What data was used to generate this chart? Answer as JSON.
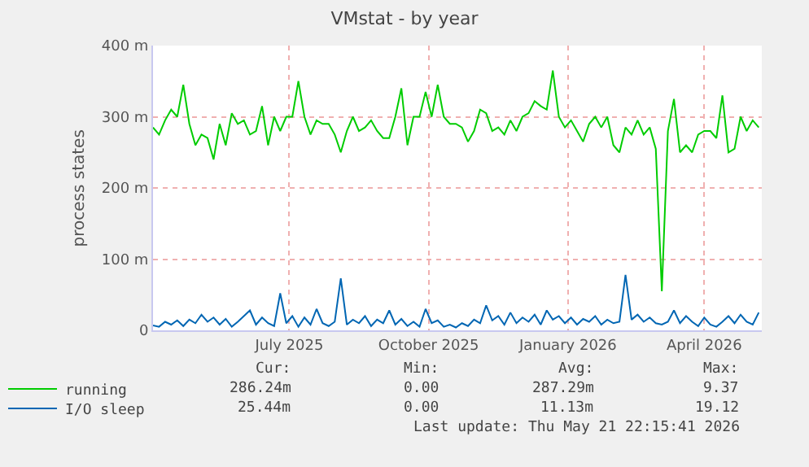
{
  "chart_data": {
    "type": "line",
    "title": "VMstat - by year",
    "ylabel": "process states",
    "x": [
      "2025-04-02",
      "2025-04-06",
      "2025-04-10",
      "2025-04-14",
      "2025-04-18",
      "2025-04-22",
      "2025-04-26",
      "2025-04-30",
      "2025-05-04",
      "2025-05-08",
      "2025-05-12",
      "2025-05-16",
      "2025-05-20",
      "2025-05-24",
      "2025-05-28",
      "2025-06-01",
      "2025-06-05",
      "2025-06-09",
      "2025-06-13",
      "2025-06-17",
      "2025-06-21",
      "2025-06-25",
      "2025-06-29",
      "2025-07-03",
      "2025-07-07",
      "2025-07-11",
      "2025-07-15",
      "2025-07-19",
      "2025-07-23",
      "2025-07-27",
      "2025-07-31",
      "2025-08-04",
      "2025-08-08",
      "2025-08-12",
      "2025-08-16",
      "2025-08-20",
      "2025-08-24",
      "2025-08-28",
      "2025-09-01",
      "2025-09-05",
      "2025-09-09",
      "2025-09-13",
      "2025-09-17",
      "2025-09-21",
      "2025-09-25",
      "2025-09-29",
      "2025-10-03",
      "2025-10-07",
      "2025-10-11",
      "2025-10-15",
      "2025-10-19",
      "2025-10-23",
      "2025-10-27",
      "2025-10-31",
      "2025-11-04",
      "2025-11-08",
      "2025-11-12",
      "2025-11-16",
      "2025-11-20",
      "2025-11-24",
      "2025-11-28",
      "2025-12-02",
      "2025-12-06",
      "2025-12-10",
      "2025-12-14",
      "2025-12-18",
      "2025-12-22",
      "2025-12-26",
      "2025-12-30",
      "2026-01-03",
      "2026-01-07",
      "2026-01-11",
      "2026-01-15",
      "2026-01-19",
      "2026-01-23",
      "2026-01-27",
      "2026-01-31",
      "2026-02-04",
      "2026-02-08",
      "2026-02-12",
      "2026-02-16",
      "2026-02-20",
      "2026-02-24",
      "2026-02-28",
      "2026-03-04",
      "2026-03-08",
      "2026-03-12",
      "2026-03-16",
      "2026-03-20",
      "2026-03-24",
      "2026-03-28",
      "2026-04-01",
      "2026-04-05",
      "2026-04-09",
      "2026-04-13",
      "2026-04-17",
      "2026-04-21",
      "2026-04-25",
      "2026-04-29",
      "2026-05-03",
      "2026-05-07"
    ],
    "series": [
      {
        "name": "running",
        "color": "#00cc00",
        "values": [
          285,
          275,
          295,
          310,
          300,
          345,
          290,
          260,
          275,
          270,
          240,
          290,
          260,
          305,
          290,
          295,
          275,
          280,
          315,
          260,
          300,
          280,
          300,
          300,
          350,
          300,
          275,
          295,
          290,
          290,
          275,
          250,
          280,
          300,
          280,
          285,
          295,
          280,
          270,
          270,
          300,
          340,
          260,
          300,
          300,
          335,
          300,
          345,
          300,
          290,
          290,
          285,
          265,
          280,
          310,
          305,
          280,
          285,
          275,
          295,
          280,
          300,
          305,
          322,
          315,
          310,
          365,
          300,
          285,
          295,
          280,
          265,
          290,
          300,
          285,
          300,
          260,
          250,
          285,
          275,
          295,
          275,
          285,
          255,
          55,
          280,
          325,
          250,
          260,
          250,
          275,
          280,
          280,
          270,
          330,
          250,
          255,
          300,
          280,
          295,
          285
        ]
      },
      {
        "name": "I/O sleep",
        "color": "#0066b3",
        "values": [
          7,
          5,
          12,
          8,
          14,
          6,
          15,
          10,
          22,
          12,
          18,
          8,
          16,
          5,
          12,
          20,
          28,
          8,
          18,
          10,
          6,
          52,
          10,
          20,
          5,
          18,
          8,
          30,
          10,
          6,
          12,
          73,
          8,
          15,
          10,
          20,
          6,
          15,
          10,
          28,
          8,
          16,
          6,
          12,
          5,
          30,
          10,
          14,
          5,
          8,
          4,
          10,
          6,
          15,
          10,
          35,
          14,
          20,
          8,
          25,
          10,
          18,
          12,
          22,
          8,
          28,
          15,
          20,
          10,
          18,
          8,
          16,
          12,
          20,
          8,
          15,
          10,
          12,
          78,
          15,
          22,
          12,
          18,
          10,
          8,
          12,
          28,
          10,
          20,
          12,
          6,
          18,
          8,
          5,
          12,
          20,
          10,
          22,
          12,
          8,
          25
        ]
      }
    ],
    "xlim": [
      "2025-04-02",
      "2026-05-09"
    ],
    "xticks": [
      {
        "value": "2025-07-01",
        "label": "July 2025"
      },
      {
        "value": "2025-10-01",
        "label": "October 2025"
      },
      {
        "value": "2026-01-01",
        "label": "January 2026"
      },
      {
        "value": "2026-04-01",
        "label": "April 2026"
      }
    ],
    "ylim": [
      0,
      400
    ],
    "yticks": [
      0,
      {
        "value": 100,
        "label": "100 m"
      },
      {
        "value": 200,
        "label": "200 m"
      },
      {
        "value": 300,
        "label": "300 m"
      },
      {
        "value": 400,
        "label": "400 m"
      }
    ],
    "grid": true,
    "legend": "bottom left",
    "marker": "none",
    "line_style": "solid",
    "annotations": [
      "Cur:",
      "Min:",
      "Avg:",
      "Max:",
      "286.24m",
      "0.00",
      "287.29m",
      "9.37",
      "25.44m",
      "0.00",
      "11.13m",
      "19.12",
      "Last update: Thu May 21 22:15:41 2026"
    ]
  }
}
